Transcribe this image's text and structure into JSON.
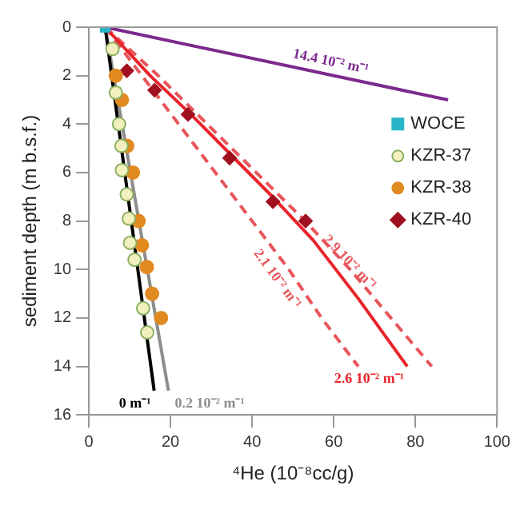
{
  "chart_data": {
    "type": "scatter",
    "xlabel": "⁴He (10⁻⁸cc/g)",
    "ylabel": "sediment depth (m b.s.f.)",
    "xlim": [
      0,
      100
    ],
    "xticks": [
      0,
      20,
      40,
      60,
      80,
      100
    ],
    "ylim": [
      16,
      0
    ],
    "yticks": [
      0,
      2,
      4,
      6,
      8,
      10,
      12,
      14,
      16
    ],
    "grid": false,
    "legend": "right",
    "series": [
      {
        "type": "line",
        "name": "14.4 10⁻² m⁻¹",
        "color": "#7b2a8c",
        "line_style": "solid",
        "x": [
          4,
          88
        ],
        "values": [
          0,
          3
        ]
      },
      {
        "type": "line",
        "name": "0 m⁻¹",
        "color": "#000000",
        "line_style": "solid",
        "x": [
          4,
          16
        ],
        "values": [
          0,
          15
        ]
      },
      {
        "type": "line",
        "name": "0.2 10⁻² m⁻¹",
        "color": "#8c8c8c",
        "line_style": "solid",
        "x": [
          4,
          19.5
        ],
        "values": [
          0,
          15
        ]
      },
      {
        "type": "line",
        "name": "2.6 10⁻² m⁻¹",
        "color": "#e8242a",
        "line_style": "solid",
        "x": [
          4,
          15,
          25,
          35,
          45,
          55,
          66,
          78
        ],
        "values": [
          0,
          2,
          3.6,
          5.3,
          7,
          8.8,
          11.2,
          14
        ]
      },
      {
        "type": "line",
        "name": "2.9 10⁻² m⁻¹",
        "color": "#e8555a",
        "line_style": "dashed",
        "x": [
          4,
          17,
          29,
          41,
          53,
          64,
          74,
          84
        ],
        "values": [
          0,
          2,
          4,
          6,
          8,
          10,
          12,
          14
        ]
      },
      {
        "type": "line",
        "name": "2.1 10⁻² m⁻¹",
        "color": "#e8555a",
        "line_style": "dashed",
        "x": [
          4,
          13,
          22,
          31,
          40,
          49,
          57,
          66
        ],
        "values": [
          0,
          2,
          4,
          6,
          8,
          10,
          12,
          14
        ]
      },
      {
        "type": "scatter",
        "name": "WOCE",
        "color": "#29b5c8",
        "marker": "square",
        "x": [
          4
        ],
        "values": [
          0
        ]
      },
      {
        "type": "scatter",
        "name": "KZR-37",
        "color": "#f3f0c0",
        "marker": "circle",
        "x": [
          5.8,
          6.6,
          7.4,
          8.0,
          8.1,
          9.3,
          9.8,
          10.1,
          11.2,
          13.3,
          14.3
        ],
        "values": [
          0.9,
          2.7,
          4.0,
          4.9,
          5.9,
          6.9,
          7.9,
          8.9,
          9.6,
          11.6,
          12.6
        ]
      },
      {
        "type": "scatter",
        "name": "KZR-38",
        "color": "#e08a20",
        "marker": "circle",
        "x": [
          6.6,
          8.1,
          9.4,
          10.8,
          12.2,
          13.0,
          14.2,
          15.5,
          17.7
        ],
        "values": [
          2.0,
          3.0,
          4.9,
          6.0,
          8.0,
          9.0,
          9.9,
          11.0,
          12.0
        ]
      },
      {
        "type": "scatter",
        "name": "KZR-40",
        "color": "#a01020",
        "marker": "diamond",
        "x": [
          9.3,
          16.1,
          24.3,
          34.5,
          45.1,
          53.1
        ],
        "values": [
          1.8,
          2.6,
          3.6,
          5.4,
          7.2,
          8.0
        ]
      }
    ]
  }
}
